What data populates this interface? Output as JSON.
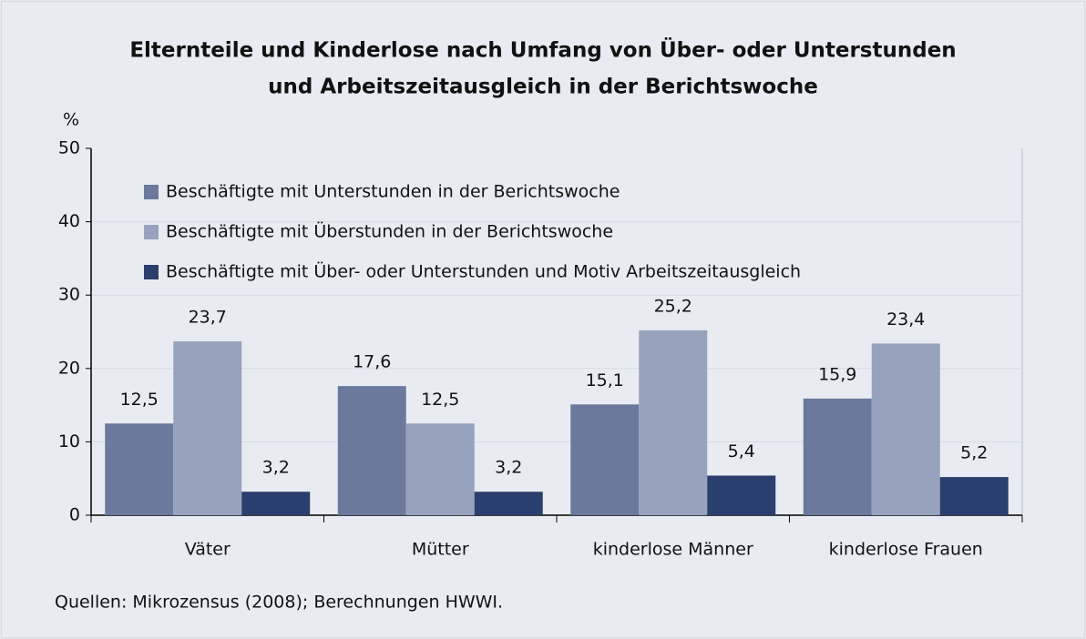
{
  "chart_data": {
    "type": "bar",
    "title": [
      "Elternteile und Kinderlose nach Umfang von Über- oder Unterstunden",
      "und Arbeitszeitausgleich in der Berichtswoche"
    ],
    "y_label": "%",
    "categories": [
      "Väter",
      "Mütter",
      "kinderlose Männer",
      "kinderlose Frauen"
    ],
    "series": [
      {
        "name": "Beschäftigte mit Unterstunden in der Berichtswoche",
        "color": "#6b7a9c",
        "values": [
          12.5,
          17.6,
          15.1,
          15.9
        ],
        "value_labels": [
          "12,5",
          "17,6",
          "15,1",
          "15,9"
        ]
      },
      {
        "name": "Beschäftigte mit Überstunden in der Berichtswoche",
        "color": "#97a3bd",
        "values": [
          23.7,
          12.5,
          25.2,
          23.4
        ],
        "value_labels": [
          "23,7",
          "12,5",
          "25,2",
          "23,4"
        ]
      },
      {
        "name": "Beschäftigte mit Über- oder Unterstunden und Motiv Arbeitszeitausgleich",
        "color": "#2b3f6e",
        "values": [
          3.2,
          3.2,
          5.4,
          5.2
        ],
        "value_labels": [
          "3,2",
          "3,2",
          "5,4",
          "5,2"
        ]
      }
    ],
    "ylim": [
      0,
      50
    ],
    "yticks": [
      0,
      10,
      20,
      30,
      40,
      50
    ],
    "grid": true,
    "source": "Quellen: Mikrozensus (2008); Berechnungen HWWI."
  }
}
